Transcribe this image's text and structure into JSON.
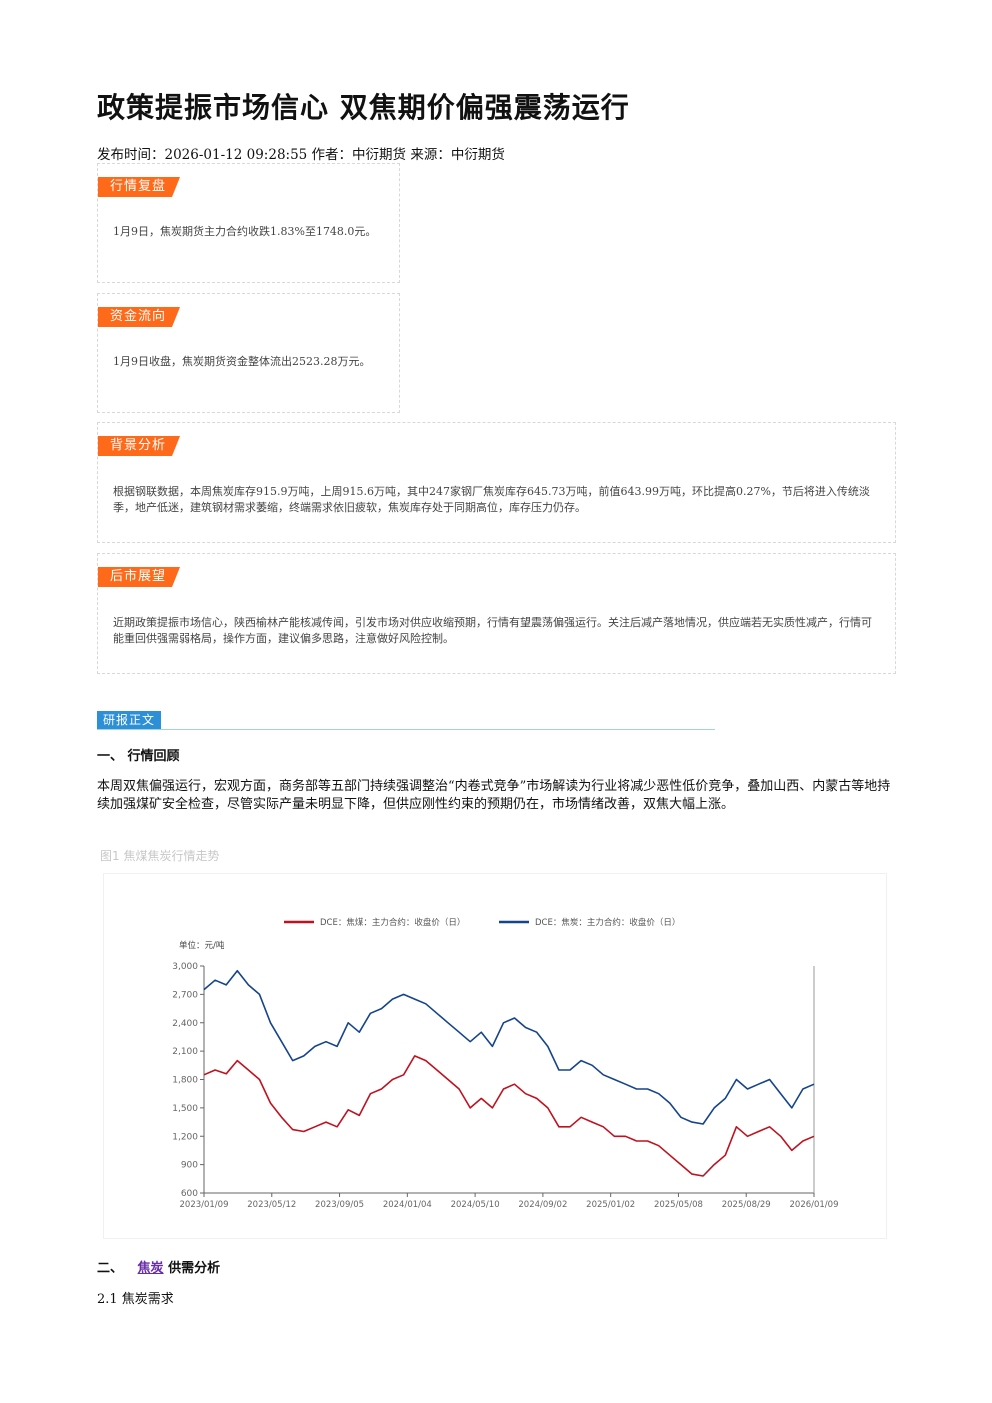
{
  "title": "政策提振市场信心 双焦期价偏强震荡运行",
  "meta": "发布时间：2026-01-12 09:28:55 作者：中衍期货 来源：中衍期货",
  "boxes": {
    "review": {
      "tag": "行情复盘",
      "text": "1月9日，焦炭期货主力合约收跌1.83%至1748.0元。"
    },
    "fund": {
      "tag": "资金流向",
      "text": "1月9日收盘，焦炭期货资金整体流出2523.28万元。"
    },
    "background": {
      "tag": "背景分析",
      "text": "根据钢联数据，本周焦炭库存915.9万吨，上周915.6万吨，其中247家钢厂焦炭库存645.73万吨，前值643.99万吨，环比提高0.27%，节后将进入传统淡季，地产低迷，建筑钢材需求萎缩，终端需求依旧疲软，焦炭库存处于同期高位，库存压力仍存。"
    },
    "outlook": {
      "tag": "后市展望",
      "text": "近期政策提振市场信心，陕西榆林产能核减传闻，引发市场对供应收缩预期，行情有望震荡偏强运行。关注后减产落地情况，供应端若无实质性减产，行情可能重回供强需弱格局，操作方面，建议偏多思路，注意做好风险控制。"
    }
  },
  "report_tag": "研报正文",
  "section1": {
    "heading": "一、 行情回顾",
    "para": "本周双焦偏强运行，宏观方面，商务部等五部门持续强调整治“内卷式竞争”市场解读为行业将减少恶性低价竞争，叠加山西、内蒙古等地持续加强煤矿安全检查，尽管实际产量未明显下降，但供应刚性约束的预期仍在，市场情绪改善，双焦大幅上涨。"
  },
  "figure_caption": "图1 焦煤焦炭行情走势",
  "section2": {
    "prefix": "二、",
    "keyword": "焦炭",
    "suffix": "供需分析",
    "sub": "2.1 焦炭需求"
  },
  "colors": {
    "tag": "#ff6a1a",
    "report": "#2d8fd6",
    "coal": "#c0111f",
    "coke": "#15448a"
  },
  "chart_data": {
    "type": "line",
    "unit_label": "单位：元/吨",
    "ylim": [
      600,
      3000
    ],
    "yticks": [
      600,
      900,
      1200,
      1500,
      1800,
      2100,
      2400,
      2700,
      3000
    ],
    "ytick_labels": [
      "600",
      "900",
      "1,200",
      "1,500",
      "1,800",
      "2,100",
      "2,400",
      "2,700",
      "3,000"
    ],
    "x_tick_labels": [
      "2023/01/09",
      "2023/05/12",
      "2023/09/05",
      "2024/01/04",
      "2024/05/10",
      "2024/09/02",
      "2025/01/02",
      "2025/05/08",
      "2025/08/29",
      "2026/01/09"
    ],
    "legend_position": "top",
    "series": [
      {
        "name": "DCE：焦煤：主力合约：收盘价（日）",
        "color": "#c0111f",
        "values": [
          1850,
          1900,
          1860,
          2000,
          1900,
          1800,
          1550,
          1400,
          1270,
          1250,
          1300,
          1350,
          1300,
          1480,
          1420,
          1650,
          1700,
          1800,
          1850,
          2050,
          2000,
          1900,
          1800,
          1700,
          1500,
          1600,
          1500,
          1700,
          1750,
          1650,
          1600,
          1500,
          1300,
          1300,
          1400,
          1350,
          1300,
          1200,
          1200,
          1150,
          1150,
          1100,
          1000,
          900,
          800,
          780,
          900,
          1000,
          1300,
          1200,
          1250,
          1300,
          1200,
          1050,
          1150,
          1200
        ]
      },
      {
        "name": "DCE：焦炭：主力合约：收盘价（日）",
        "color": "#15448a",
        "values": [
          2750,
          2850,
          2800,
          2950,
          2800,
          2700,
          2400,
          2200,
          2000,
          2050,
          2150,
          2200,
          2150,
          2400,
          2300,
          2500,
          2550,
          2650,
          2700,
          2650,
          2600,
          2500,
          2400,
          2300,
          2200,
          2300,
          2150,
          2400,
          2450,
          2350,
          2300,
          2150,
          1900,
          1900,
          2000,
          1950,
          1850,
          1800,
          1750,
          1700,
          1700,
          1650,
          1550,
          1400,
          1350,
          1330,
          1500,
          1600,
          1800,
          1700,
          1750,
          1800,
          1650,
          1500,
          1700,
          1750
        ]
      }
    ]
  }
}
